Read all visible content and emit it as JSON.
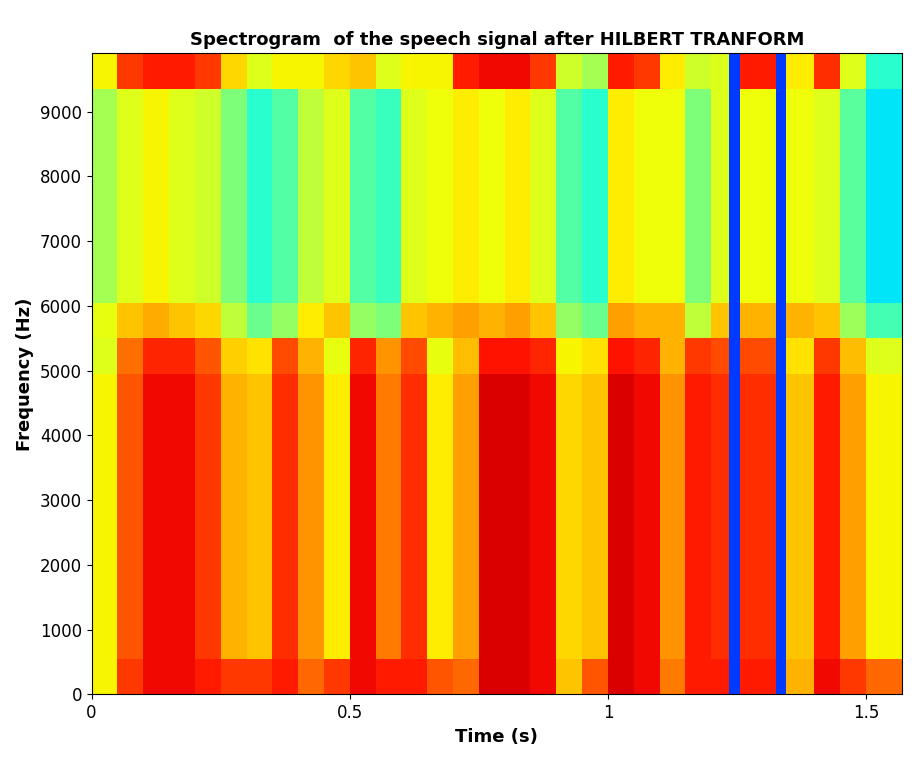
{
  "chart_data": {
    "type": "heatmap",
    "title": "Spectrogram  of the speech signal after HILBERT TRANFORM",
    "x_label": "Time (s)",
    "y_label": "Frequency (Hz)",
    "xlim": [
      0,
      1.57
    ],
    "ylim": [
      0,
      9900
    ],
    "xticks": [
      0,
      0.5,
      1,
      1.5
    ],
    "yticks": [
      0,
      1000,
      2000,
      3000,
      4000,
      5000,
      6000,
      7000,
      8000,
      9000
    ],
    "time_bins": [
      0,
      0.05,
      0.1,
      0.15,
      0.2,
      0.25,
      0.3,
      0.35,
      0.4,
      0.45,
      0.5,
      0.55,
      0.6,
      0.65,
      0.7,
      0.75,
      0.8,
      0.85,
      0.9,
      0.95,
      1.0,
      1.05,
      1.1,
      1.15,
      1.2,
      1.235,
      1.255,
      1.325,
      1.345,
      1.4,
      1.45,
      1.5,
      1.57
    ],
    "frequency_bins": [
      0,
      550,
      1100,
      1650,
      2200,
      2750,
      3300,
      3850,
      4400,
      4950,
      5500,
      6050,
      6600,
      7150,
      7700,
      8250,
      8800,
      9350,
      9900
    ],
    "color_range": [
      0,
      100
    ],
    "cells": [
      [
        65,
        85,
        90,
        90,
        88,
        85,
        85,
        88,
        80,
        85,
        90,
        88,
        88,
        82,
        80,
        92,
        92,
        90,
        70,
        82,
        92,
        90,
        78,
        88,
        88,
        18,
        88,
        18,
        72,
        90,
        85,
        80
      ],
      [
        65,
        82,
        90,
        90,
        85,
        72,
        70,
        86,
        75,
        66,
        90,
        78,
        86,
        66,
        74,
        92,
        92,
        90,
        68,
        70,
        92,
        90,
        75,
        88,
        86,
        18,
        86,
        18,
        70,
        88,
        74,
        65
      ],
      [
        65,
        82,
        90,
        90,
        85,
        72,
        70,
        86,
        75,
        66,
        90,
        78,
        86,
        66,
        74,
        92,
        92,
        90,
        68,
        70,
        92,
        90,
        75,
        88,
        86,
        18,
        86,
        18,
        70,
        88,
        74,
        65
      ],
      [
        65,
        82,
        90,
        90,
        85,
        72,
        70,
        86,
        75,
        66,
        90,
        78,
        86,
        66,
        74,
        92,
        92,
        90,
        68,
        70,
        92,
        90,
        75,
        88,
        86,
        18,
        86,
        18,
        70,
        88,
        74,
        65
      ],
      [
        65,
        82,
        90,
        90,
        85,
        72,
        70,
        86,
        75,
        66,
        90,
        78,
        86,
        66,
        74,
        92,
        92,
        90,
        68,
        70,
        92,
        90,
        75,
        88,
        86,
        18,
        86,
        18,
        70,
        88,
        74,
        65
      ],
      [
        65,
        82,
        90,
        90,
        85,
        72,
        70,
        86,
        75,
        66,
        90,
        78,
        86,
        66,
        74,
        92,
        92,
        90,
        68,
        70,
        92,
        90,
        75,
        88,
        86,
        18,
        86,
        18,
        70,
        88,
        74,
        65
      ],
      [
        65,
        82,
        90,
        90,
        85,
        72,
        70,
        86,
        75,
        66,
        90,
        78,
        86,
        66,
        74,
        92,
        92,
        90,
        68,
        70,
        92,
        90,
        75,
        88,
        86,
        18,
        86,
        18,
        70,
        88,
        74,
        65
      ],
      [
        65,
        82,
        90,
        90,
        85,
        72,
        70,
        86,
        75,
        66,
        90,
        78,
        86,
        66,
        74,
        92,
        92,
        90,
        68,
        70,
        92,
        90,
        75,
        88,
        86,
        18,
        86,
        18,
        70,
        88,
        74,
        65
      ],
      [
        65,
        82,
        90,
        90,
        85,
        72,
        70,
        86,
        75,
        66,
        90,
        78,
        86,
        66,
        74,
        92,
        92,
        90,
        68,
        70,
        92,
        90,
        75,
        88,
        86,
        18,
        86,
        18,
        70,
        88,
        74,
        65
      ],
      [
        62,
        79,
        87,
        87,
        82,
        69,
        67,
        83,
        72,
        63,
        87,
        75,
        83,
        63,
        71,
        89,
        89,
        87,
        65,
        67,
        89,
        87,
        72,
        85,
        83,
        18,
        83,
        18,
        67,
        85,
        71,
        62
      ],
      [
        63,
        70,
        73,
        70,
        68,
        58,
        48,
        53,
        66,
        70,
        53,
        50,
        70,
        72,
        74,
        72,
        74,
        70,
        53,
        48,
        74,
        72,
        72,
        58,
        70,
        18,
        72,
        18,
        72,
        70,
        54,
        43
      ],
      [
        55,
        62,
        65,
        62,
        60,
        50,
        40,
        45,
        58,
        62,
        45,
        42,
        62,
        64,
        66,
        64,
        66,
        62,
        45,
        40,
        66,
        64,
        64,
        50,
        62,
        18,
        64,
        18,
        64,
        62,
        46,
        35
      ],
      [
        55,
        62,
        65,
        62,
        60,
        50,
        40,
        45,
        58,
        62,
        45,
        42,
        62,
        64,
        66,
        64,
        66,
        62,
        45,
        40,
        66,
        64,
        64,
        50,
        62,
        18,
        64,
        18,
        64,
        62,
        46,
        35
      ],
      [
        55,
        62,
        65,
        62,
        60,
        50,
        40,
        45,
        58,
        62,
        45,
        42,
        62,
        64,
        66,
        64,
        66,
        62,
        45,
        40,
        66,
        64,
        64,
        50,
        62,
        18,
        64,
        18,
        64,
        62,
        46,
        35
      ],
      [
        55,
        62,
        65,
        62,
        60,
        50,
        40,
        45,
        58,
        62,
        45,
        42,
        62,
        64,
        66,
        64,
        66,
        62,
        45,
        40,
        66,
        64,
        64,
        50,
        62,
        18,
        64,
        18,
        64,
        62,
        46,
        35
      ],
      [
        55,
        62,
        65,
        62,
        60,
        50,
        40,
        45,
        58,
        62,
        45,
        42,
        62,
        64,
        66,
        64,
        66,
        62,
        45,
        40,
        66,
        64,
        64,
        50,
        62,
        18,
        64,
        18,
        64,
        62,
        46,
        35
      ],
      [
        55,
        62,
        65,
        62,
        60,
        50,
        40,
        45,
        58,
        62,
        45,
        42,
        62,
        64,
        66,
        64,
        66,
        62,
        45,
        40,
        66,
        64,
        64,
        50,
        62,
        18,
        64,
        18,
        64,
        62,
        46,
        35
      ],
      [
        65,
        85,
        88,
        88,
        85,
        68,
        62,
        65,
        65,
        68,
        70,
        62,
        65,
        65,
        88,
        90,
        90,
        85,
        60,
        55,
        88,
        85,
        66,
        60,
        62,
        18,
        88,
        18,
        66,
        86,
        62,
        40
      ]
    ]
  }
}
